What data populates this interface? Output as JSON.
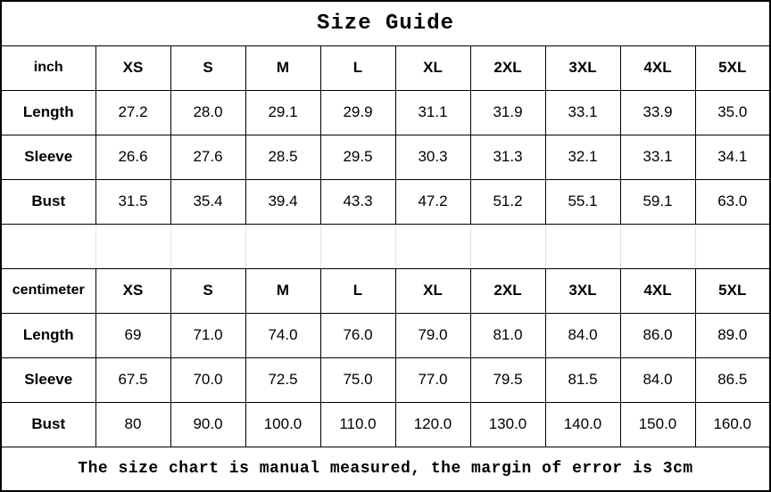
{
  "chart_data": {
    "type": "table",
    "title": "Size Guide",
    "note": "The size chart is manual measured, the margin of error is 3cm",
    "sections": [
      {
        "unit_label": "inch",
        "size_headers": [
          "XS",
          "S",
          "M",
          "L",
          "XL",
          "2XL",
          "3XL",
          "4XL",
          "5XL"
        ],
        "rows": [
          {
            "label": "Length",
            "values": [
              "27.2",
              "28.0",
              "29.1",
              "29.9",
              "31.1",
              "31.9",
              "33.1",
              "33.9",
              "35.0"
            ]
          },
          {
            "label": "Sleeve",
            "values": [
              "26.6",
              "27.6",
              "28.5",
              "29.5",
              "30.3",
              "31.3",
              "32.1",
              "33.1",
              "34.1"
            ]
          },
          {
            "label": "Bust",
            "values": [
              "31.5",
              "35.4",
              "39.4",
              "43.3",
              "47.2",
              "51.2",
              "55.1",
              "59.1",
              "63.0"
            ]
          }
        ]
      },
      {
        "unit_label": "centimeter",
        "size_headers": [
          "XS",
          "S",
          "M",
          "L",
          "XL",
          "2XL",
          "3XL",
          "4XL",
          "5XL"
        ],
        "rows": [
          {
            "label": "Length",
            "values": [
              "69",
              "71.0",
              "74.0",
              "76.0",
              "79.0",
              "81.0",
              "84.0",
              "86.0",
              "89.0"
            ]
          },
          {
            "label": "Sleeve",
            "values": [
              "67.5",
              "70.0",
              "72.5",
              "75.0",
              "77.0",
              "79.5",
              "81.5",
              "84.0",
              "86.5"
            ]
          },
          {
            "label": "Bust",
            "values": [
              "80",
              "90.0",
              "100.0",
              "110.0",
              "120.0",
              "130.0",
              "140.0",
              "150.0",
              "160.0"
            ]
          }
        ]
      }
    ]
  },
  "colors": {
    "border": "#000000",
    "background": "#ffffff",
    "text": "#000000",
    "spacer_divider": "#e2e2e2"
  }
}
